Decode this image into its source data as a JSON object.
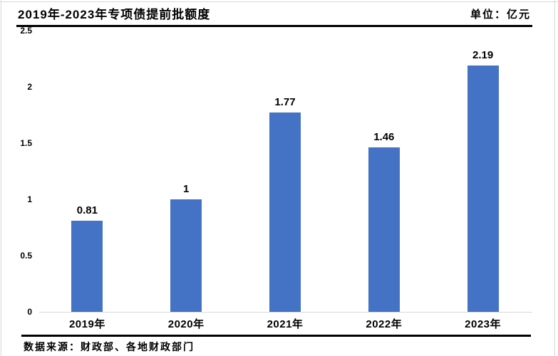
{
  "header": {
    "title": "2019年-2023年专项债提前批额度",
    "unit_label": "单位：亿元"
  },
  "footer": {
    "source": "数据来源：财政部、各地财政部门"
  },
  "chart_data": {
    "type": "bar",
    "title": "2019年-2023年专项债提前批额度",
    "unit": "亿元",
    "categories": [
      "2019年",
      "2020年",
      "2021年",
      "2022年",
      "2023年"
    ],
    "values": [
      0.81,
      1,
      1.77,
      1.46,
      2.19
    ],
    "data_labels": [
      "0.81",
      "1",
      "1.77",
      "1.46",
      "2.19"
    ],
    "xlabel": "",
    "ylabel": "",
    "ylim": [
      0,
      2.5
    ],
    "ytick_interval": 0.5,
    "ytick_labels": [
      "0",
      "0.5",
      "1",
      "1.5",
      "2",
      "2.5"
    ],
    "grid": false,
    "legend": "none",
    "bar_color": "#4472C4",
    "axis_color": "#D9D9D9",
    "text_color": "#000000"
  }
}
